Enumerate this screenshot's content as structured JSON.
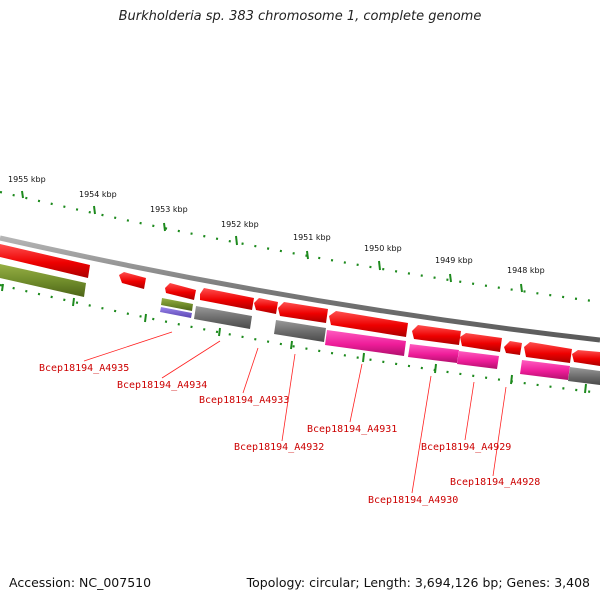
{
  "title": "Burkholderia sp. 383 chromosome 1, complete genome",
  "accession": "Accession: NC_007510",
  "summary": "Topology: circular; Length: 3,694,126 bp; Genes: 3,408",
  "colors": {
    "forward_gene": "#ee0000",
    "forward_gene_light": "#ff7070",
    "reverse_gene_red": "#ee0000",
    "magenta_gene": "#ee1c99",
    "gray_gene": "#6b6b6b",
    "olive_gene": "#6e8a2a",
    "purple_gene": "#7058c8",
    "backbone": "#808080",
    "tick": "#1d8a1d",
    "label": "#cc0000"
  },
  "kbp_labels": [
    "1955 kbp",
    "1954 kbp",
    "1953 kbp",
    "1952 kbp",
    "1951 kbp",
    "1950 kbp",
    "1949 kbp",
    "1948 kbp"
  ],
  "gene_labels": [
    "Bcep18194_A4935",
    "Bcep18194_A4934",
    "Bcep18194_A4933",
    "Bcep18194_A4932",
    "Bcep18194_A4931",
    "Bcep18194_A4930",
    "Bcep18194_A4929",
    "Bcep18194_A4928"
  ]
}
